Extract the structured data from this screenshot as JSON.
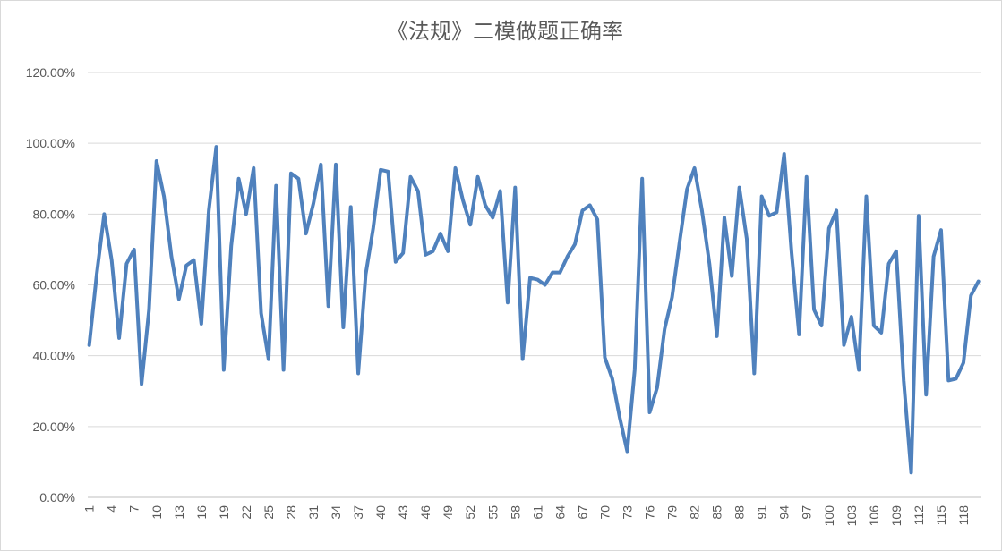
{
  "chart_data": {
    "type": "line",
    "title": "《法规》二模做题正确率",
    "xlabel": "",
    "ylabel": "",
    "ylim": [
      0,
      1.2
    ],
    "y_ticks": [
      0,
      0.2,
      0.4,
      0.6,
      0.8,
      1.0,
      1.2
    ],
    "y_tick_labels": [
      "0.00%",
      "20.00%",
      "40.00%",
      "60.00%",
      "80.00%",
      "100.00%",
      "120.00%"
    ],
    "x_tick_labels": [
      "1",
      "4",
      "7",
      "10",
      "13",
      "16",
      "19",
      "22",
      "25",
      "28",
      "31",
      "34",
      "37",
      "40",
      "43",
      "46",
      "49",
      "52",
      "55",
      "58",
      "61",
      "64",
      "67",
      "70",
      "73",
      "76",
      "79",
      "82",
      "85",
      "88",
      "91",
      "94",
      "97",
      "100",
      "103",
      "106",
      "109",
      "112",
      "115",
      "118"
    ],
    "grid": "horizontal",
    "legend": "none",
    "color": "#4f81bd",
    "x": [
      1,
      2,
      3,
      4,
      5,
      6,
      7,
      8,
      9,
      10,
      11,
      12,
      13,
      14,
      15,
      16,
      17,
      18,
      19,
      20,
      21,
      22,
      23,
      24,
      25,
      26,
      27,
      28,
      29,
      30,
      31,
      32,
      33,
      34,
      35,
      36,
      37,
      38,
      39,
      40,
      41,
      42,
      43,
      44,
      45,
      46,
      47,
      48,
      49,
      50,
      51,
      52,
      53,
      54,
      55,
      56,
      57,
      58,
      59,
      60,
      61,
      62,
      63,
      64,
      65,
      66,
      67,
      68,
      69,
      70,
      71,
      72,
      73,
      74,
      75,
      76,
      77,
      78,
      79,
      80,
      81,
      82,
      83,
      84,
      85,
      86,
      87,
      88,
      89,
      90,
      91,
      92,
      93,
      94,
      95,
      96,
      97,
      98,
      99,
      100,
      101,
      102,
      103,
      104,
      105,
      106,
      107,
      108,
      109,
      110,
      111,
      112,
      113,
      114,
      115,
      116,
      117,
      118,
      119,
      120
    ],
    "values": [
      0.43,
      0.63,
      0.8,
      0.67,
      0.45,
      0.66,
      0.7,
      0.32,
      0.53,
      0.95,
      0.85,
      0.68,
      0.56,
      0.655,
      0.67,
      0.49,
      0.81,
      0.99,
      0.36,
      0.71,
      0.9,
      0.8,
      0.93,
      0.52,
      0.39,
      0.88,
      0.36,
      0.915,
      0.9,
      0.745,
      0.83,
      0.94,
      0.54,
      0.94,
      0.48,
      0.82,
      0.35,
      0.63,
      0.76,
      0.925,
      0.92,
      0.665,
      0.69,
      0.905,
      0.865,
      0.685,
      0.695,
      0.745,
      0.695,
      0.93,
      0.84,
      0.77,
      0.905,
      0.825,
      0.79,
      0.865,
      0.55,
      0.875,
      0.39,
      0.62,
      0.615,
      0.6,
      0.635,
      0.635,
      0.68,
      0.715,
      0.81,
      0.825,
      0.785,
      0.395,
      0.335,
      0.225,
      0.13,
      0.36,
      0.9,
      0.24,
      0.31,
      0.475,
      0.565,
      0.72,
      0.87,
      0.93,
      0.81,
      0.66,
      0.455,
      0.79,
      0.625,
      0.875,
      0.73,
      0.35,
      0.85,
      0.795,
      0.805,
      0.97,
      0.69,
      0.46,
      0.905,
      0.53,
      0.485,
      0.76,
      0.81,
      0.43,
      0.51,
      0.36,
      0.85,
      0.485,
      0.465,
      0.66,
      0.695,
      0.33,
      0.07,
      0.795,
      0.29,
      0.68,
      0.755,
      0.33,
      0.335,
      0.38,
      0.57,
      0.61
    ]
  }
}
